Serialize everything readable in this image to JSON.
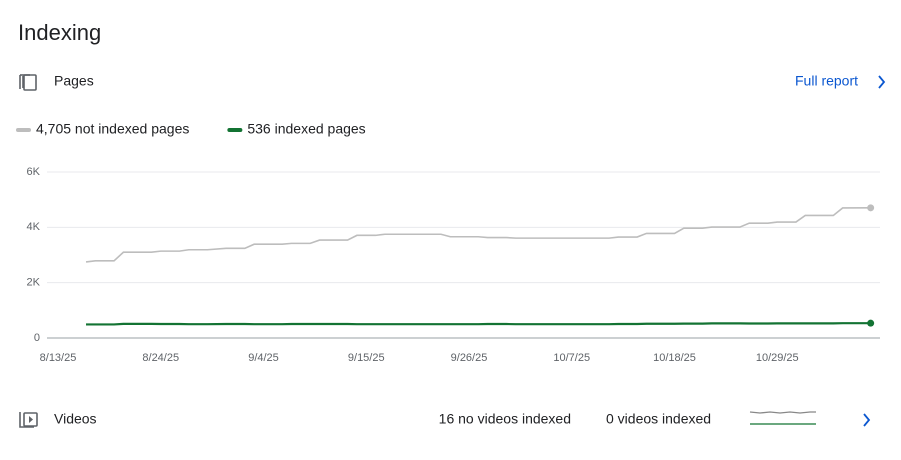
{
  "header": {
    "title": "Indexing"
  },
  "pages": {
    "label": "Pages",
    "link": "Full report"
  },
  "chart_data": {
    "type": "line",
    "x": [
      "8/16/25",
      "8/17/25",
      "8/19/25",
      "8/20/25",
      "8/23/25",
      "8/24/25",
      "8/26/25",
      "8/27/25",
      "8/29/25",
      "8/31/25",
      "9/2/25",
      "9/3/25",
      "9/6/25",
      "9/7/25",
      "9/9/25",
      "9/10/25",
      "9/13/25",
      "9/14/25",
      "9/16/25",
      "9/17/25",
      "9/23/25",
      "9/24/25",
      "9/27/25",
      "9/28/25",
      "9/30/25",
      "10/1/25",
      "10/11/25",
      "10/12/25",
      "10/14/25",
      "10/15/25",
      "10/18/25",
      "10/19/25",
      "10/21/25",
      "10/22/25",
      "10/25/25",
      "10/26/25",
      "10/28/25",
      "10/29/25",
      "10/31/25",
      "11/1/25",
      "11/4/25",
      "11/5/25",
      "11/8/25"
    ],
    "series": [
      {
        "name": "4,705 not indexed pages",
        "color": "#bdbdbd",
        "values": [
          2750,
          2790,
          2790,
          3100,
          3100,
          3140,
          3140,
          3190,
          3190,
          3240,
          3240,
          3390,
          3390,
          3420,
          3420,
          3540,
          3540,
          3710,
          3710,
          3750,
          3750,
          3660,
          3660,
          3630,
          3630,
          3610,
          3610,
          3650,
          3650,
          3780,
          3780,
          3970,
          3970,
          4010,
          4010,
          4150,
          4150,
          4190,
          4190,
          4430,
          4430,
          4700,
          4705
        ]
      },
      {
        "name": "536 indexed pages",
        "color": "#137333",
        "values": [
          490,
          490,
          490,
          510,
          510,
          505,
          505,
          500,
          500,
          505,
          505,
          500,
          500,
          505,
          505,
          505,
          505,
          500,
          500,
          500,
          500,
          500,
          500,
          505,
          505,
          500,
          500,
          505,
          505,
          515,
          515,
          520,
          520,
          530,
          530,
          525,
          525,
          530,
          530,
          530,
          530,
          536,
          536
        ]
      }
    ],
    "xlim": [
      "8/13/25",
      "11/9/25"
    ],
    "xticks": [
      "8/13/25",
      "8/24/25",
      "9/4/25",
      "9/15/25",
      "9/26/25",
      "10/7/25",
      "10/18/25",
      "10/29/25"
    ],
    "ylim": [
      0,
      6000
    ],
    "yticks": [
      0,
      {
        "value": 2000,
        "label": "2K"
      },
      {
        "value": 4000,
        "label": "4K"
      },
      {
        "value": 6000,
        "label": "6K"
      }
    ],
    "grid": true
  },
  "videos": {
    "label": "Videos",
    "stats": [
      "16 no videos indexed",
      "0 videos indexed"
    ]
  }
}
